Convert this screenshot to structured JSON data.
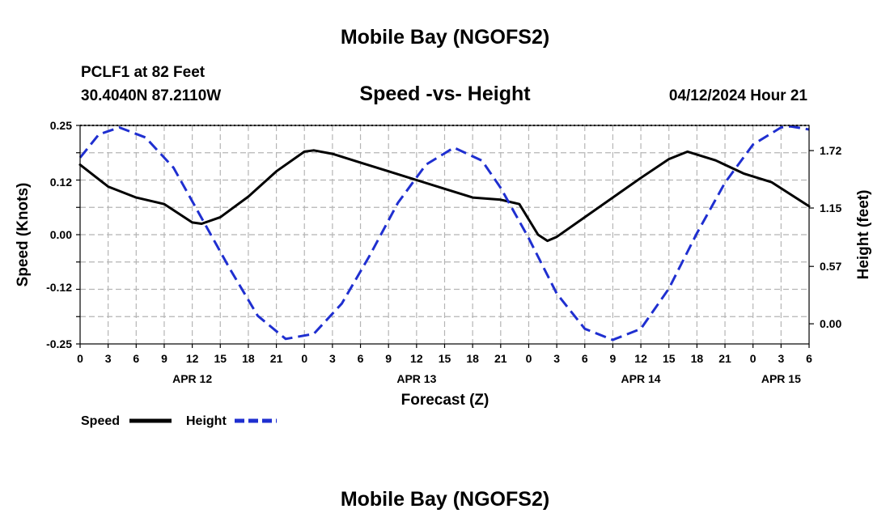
{
  "header": {
    "title": "Mobile Bay (NGOFS2)",
    "station": "PCLF1 at 82 Feet",
    "coords": "30.4040N  87.2110W",
    "subtitle": "Speed -vs- Height",
    "datetime": "04/12/2024 Hour 21"
  },
  "footer": {
    "title": "Mobile Bay (NGOFS2)"
  },
  "legend": {
    "speed": "Speed",
    "height": "Height"
  },
  "chart_data": {
    "type": "line",
    "title": "Speed -vs- Height",
    "xlabel": "Forecast (Z)",
    "ylabel": "Speed (Knots)",
    "y2label": "Height (feet)",
    "x_hours_range": [
      0,
      78
    ],
    "x_tick_labels": [
      "0",
      "3",
      "6",
      "9",
      "12",
      "15",
      "18",
      "21",
      "0",
      "3",
      "6",
      "9",
      "12",
      "15",
      "18",
      "21",
      "0",
      "3",
      "6",
      "9",
      "12",
      "15",
      "18",
      "21",
      "0",
      "3",
      "6"
    ],
    "day_labels": [
      {
        "label": "APR 12",
        "hour": 12
      },
      {
        "label": "APR 13",
        "hour": 36
      },
      {
        "label": "APR 14",
        "hour": 60
      },
      {
        "label": "APR 15",
        "hour": 75
      }
    ],
    "ylim": [
      -0.25,
      0.25
    ],
    "yticks": [
      "0.25",
      "0.12",
      "0.00",
      "-0.12",
      "-0.25"
    ],
    "ytick_values": [
      0.25,
      0.12,
      0.0,
      -0.12,
      -0.25
    ],
    "y2lim": [
      -0.2,
      1.97
    ],
    "y2ticks": [
      "1.72",
      "1.15",
      "0.57",
      "0.00"
    ],
    "y2tick_values": [
      1.72,
      1.15,
      0.57,
      0.0
    ],
    "grid": true,
    "legend_position": "bottom-left",
    "series": [
      {
        "name": "Speed",
        "axis": "left",
        "color": "#000000",
        "style": "solid",
        "x": [
          0,
          3,
          6,
          9,
          12,
          13,
          15,
          18,
          21,
          24,
          25,
          27,
          30,
          33,
          36,
          39,
          42,
          45,
          47,
          49,
          50,
          51,
          54,
          57,
          60,
          63,
          65,
          68,
          71,
          74,
          78
        ],
        "y": [
          0.16,
          0.11,
          0.085,
          0.07,
          0.028,
          0.025,
          0.04,
          0.087,
          0.145,
          0.19,
          0.193,
          0.185,
          0.165,
          0.145,
          0.125,
          0.105,
          0.085,
          0.08,
          0.07,
          0.0,
          -0.014,
          -0.005,
          0.04,
          0.085,
          0.13,
          0.173,
          0.19,
          0.17,
          0.14,
          0.12,
          0.065
        ]
      },
      {
        "name": "Height",
        "axis": "right",
        "color": "#1f2fd0",
        "style": "dashed",
        "x": [
          0,
          2,
          4.2,
          7,
          10,
          13,
          16,
          19,
          22,
          25,
          28,
          31,
          34,
          37,
          40,
          43,
          45,
          48,
          51,
          54,
          57,
          60,
          63,
          66,
          69,
          72,
          75,
          76,
          78
        ],
        "y": [
          1.65,
          1.88,
          1.95,
          1.85,
          1.55,
          1.05,
          0.55,
          0.08,
          -0.15,
          -0.1,
          0.2,
          0.68,
          1.2,
          1.58,
          1.75,
          1.62,
          1.35,
          0.85,
          0.3,
          -0.05,
          -0.16,
          -0.05,
          0.35,
          0.9,
          1.4,
          1.78,
          1.95,
          1.96,
          1.93
        ]
      }
    ]
  }
}
